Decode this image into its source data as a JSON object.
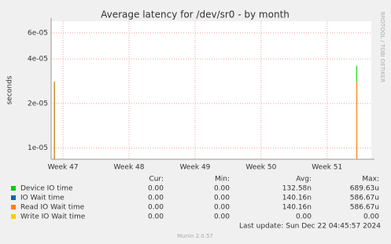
{
  "chart_data": {
    "type": "line",
    "title": "Average latency for /dev/sr0 - by month",
    "y_label": "seconds",
    "side_text": "RRDTOOL / TOBI OETIKER",
    "log_scale": true,
    "grid": true,
    "xlim": [
      46.82,
      51.67
    ],
    "xticks": [
      {
        "value": 47,
        "label": "Week 47"
      },
      {
        "value": 48,
        "label": "Week 48"
      },
      {
        "value": 49,
        "label": "Week 49"
      },
      {
        "value": 50,
        "label": "Week 50"
      },
      {
        "value": 51,
        "label": "Week 51"
      }
    ],
    "ylim": [
      8.4e-06,
      7.2e-05
    ],
    "yticks": [
      {
        "value": 1e-05,
        "label": "1e-05"
      },
      {
        "value": 2e-05,
        "label": "2e-05"
      },
      {
        "value": 4e-05,
        "label": "4e-05"
      },
      {
        "value": 6e-05,
        "label": "6e-05"
      }
    ],
    "legend_headers": [
      "Cur:",
      "Min:",
      "Avg:",
      "Max:"
    ],
    "series": [
      {
        "name": "Device IO time",
        "color": "#00cc00",
        "x": [
          46.87,
          51.45
        ],
        "values": [
          2.8e-05,
          3.6e-05
        ],
        "stats": [
          "0.00",
          "0.00",
          "132.58n",
          "689.63u"
        ]
      },
      {
        "name": "IO Wait time",
        "color": "#0066b3",
        "x": [
          46.87,
          51.45
        ],
        "values": [
          2.8e-05,
          2.8e-05
        ],
        "stats": [
          "0.00",
          "0.00",
          "140.16n",
          "586.67u"
        ]
      },
      {
        "name": "Read IO Wait time",
        "color": "#ff8000",
        "x": [
          46.87,
          51.45
        ],
        "values": [
          2.8e-05,
          2.8e-05
        ],
        "stats": [
          "0.00",
          "0.00",
          "140.16n",
          "586.67u"
        ]
      },
      {
        "name": "Write IO Wait time",
        "color": "#ffcc00",
        "x": [
          46.87,
          51.45
        ],
        "values": [
          null,
          null
        ],
        "stats": [
          "0.00",
          "0.00",
          "0.00",
          "0.00"
        ]
      }
    ],
    "last_update": "Last update: Sun Dec 22 04:45:57 2024",
    "footer": "Munin 2.0.57"
  }
}
